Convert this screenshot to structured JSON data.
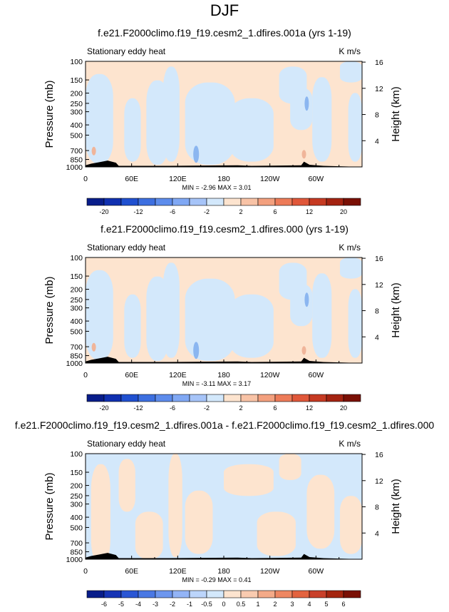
{
  "page_title": "DJF",
  "colors": {
    "positive": "#fde4cf",
    "negative": "#d3e8fb",
    "terrain": "#000000",
    "strong_neg": "#8bb6f0",
    "strong_pos": "#f0b59a"
  },
  "panels": [
    {
      "title": "f.e21.F2000climo.f19_f19.cesm2_1.dfires.001a (yrs 1-19)",
      "variable_label": "Stationary eddy heat",
      "units": "K m/s",
      "stats": "MIN = -2.96 MAX = 3.01",
      "colorbar_labels": [
        "-20",
        "-12",
        "-6",
        "-2",
        "2",
        "6",
        "12",
        "20"
      ]
    },
    {
      "title": "f.e21.F2000climo.f19_f19.cesm2_1.dfires.000 (yrs 1-19)",
      "variable_label": "Stationary eddy heat",
      "units": "K m/s",
      "stats": "MIN = -3.11 MAX = 3.17",
      "colorbar_labels": [
        "-20",
        "-12",
        "-6",
        "-2",
        "2",
        "6",
        "12",
        "20"
      ]
    },
    {
      "title": "f.e21.F2000climo.f19_f19.cesm2_1.dfires.001a - f.e21.F2000climo.f19_f19.cesm2_1.dfires.000",
      "variable_label": "Stationary eddy heat",
      "units": "K m/s",
      "stats": "MIN = -0.29 MAX = 0.41",
      "colorbar_labels": [
        "-6",
        "-5",
        "-4",
        "-3",
        "-2",
        "-1",
        "-0.5",
        "0",
        "0.5",
        "1",
        "2",
        "3",
        "4",
        "5",
        "6"
      ]
    }
  ],
  "chart_data": [
    {
      "type": "heatmap",
      "title": "f.e21.F2000climo.f19_f19.cesm2_1.dfires.001a (yrs 1-19)",
      "ylabel": "Pressure (mb)",
      "ylabel_right": "Height (km)",
      "x_ticks": [
        "0",
        "60E",
        "120E",
        "180",
        "120W",
        "60W"
      ],
      "x_tick_lon": [
        0,
        60,
        120,
        180,
        240,
        300
      ],
      "xlim": [
        0,
        360
      ],
      "y_ticks": [
        "100",
        "150",
        "200",
        "250",
        "300",
        "400",
        "500",
        "700",
        "850",
        "1000"
      ],
      "y_tick_values": [
        100,
        150,
        200,
        250,
        300,
        400,
        500,
        700,
        850,
        1000
      ],
      "ylim": [
        100,
        1000
      ],
      "y_scale": "log",
      "y_right_ticks": [
        "4",
        "8",
        "12",
        "16"
      ],
      "y_right_values": [
        4,
        8,
        12,
        16
      ],
      "min": -2.96,
      "max": 3.01,
      "contour_levels": [
        -20,
        -16,
        -12,
        -8,
        -6,
        -4,
        -2,
        -1,
        1,
        2,
        4,
        6,
        8,
        12,
        16,
        20
      ]
    },
    {
      "type": "heatmap",
      "title": "f.e21.F2000climo.f19_f19.cesm2_1.dfires.000 (yrs 1-19)",
      "ylabel": "Pressure (mb)",
      "ylabel_right": "Height (km)",
      "x_ticks": [
        "0",
        "60E",
        "120E",
        "180",
        "120W",
        "60W"
      ],
      "x_tick_lon": [
        0,
        60,
        120,
        180,
        240,
        300
      ],
      "xlim": [
        0,
        360
      ],
      "y_ticks": [
        "100",
        "150",
        "200",
        "250",
        "300",
        "400",
        "500",
        "700",
        "850",
        "1000"
      ],
      "y_tick_values": [
        100,
        150,
        200,
        250,
        300,
        400,
        500,
        700,
        850,
        1000
      ],
      "ylim": [
        100,
        1000
      ],
      "y_scale": "log",
      "y_right_ticks": [
        "4",
        "8",
        "12",
        "16"
      ],
      "y_right_values": [
        4,
        8,
        12,
        16
      ],
      "min": -3.11,
      "max": 3.17,
      "contour_levels": [
        -20,
        -16,
        -12,
        -8,
        -6,
        -4,
        -2,
        -1,
        1,
        2,
        4,
        6,
        8,
        12,
        16,
        20
      ]
    },
    {
      "type": "heatmap",
      "title": "f.e21.F2000climo.f19_f19.cesm2_1.dfires.001a - f.e21.F2000climo.f19_f19.cesm2_1.dfires.000",
      "ylabel": "Pressure (mb)",
      "ylabel_right": "Height (km)",
      "x_ticks": [
        "0",
        "60E",
        "120E",
        "180",
        "120W",
        "60W"
      ],
      "x_tick_lon": [
        0,
        60,
        120,
        180,
        240,
        300
      ],
      "xlim": [
        0,
        360
      ],
      "y_ticks": [
        "100",
        "150",
        "200",
        "250",
        "300",
        "400",
        "500",
        "700",
        "850",
        "1000"
      ],
      "y_tick_values": [
        100,
        150,
        200,
        250,
        300,
        400,
        500,
        700,
        850,
        1000
      ],
      "ylim": [
        100,
        1000
      ],
      "y_scale": "log",
      "y_right_ticks": [
        "4",
        "8",
        "12",
        "16"
      ],
      "y_right_values": [
        4,
        8,
        12,
        16
      ],
      "min": -0.29,
      "max": 0.41,
      "contour_levels": [
        -6,
        -5,
        -4,
        -3,
        -2,
        -1,
        -0.5,
        0,
        0.5,
        1,
        2,
        3,
        4,
        5,
        6
      ]
    }
  ]
}
